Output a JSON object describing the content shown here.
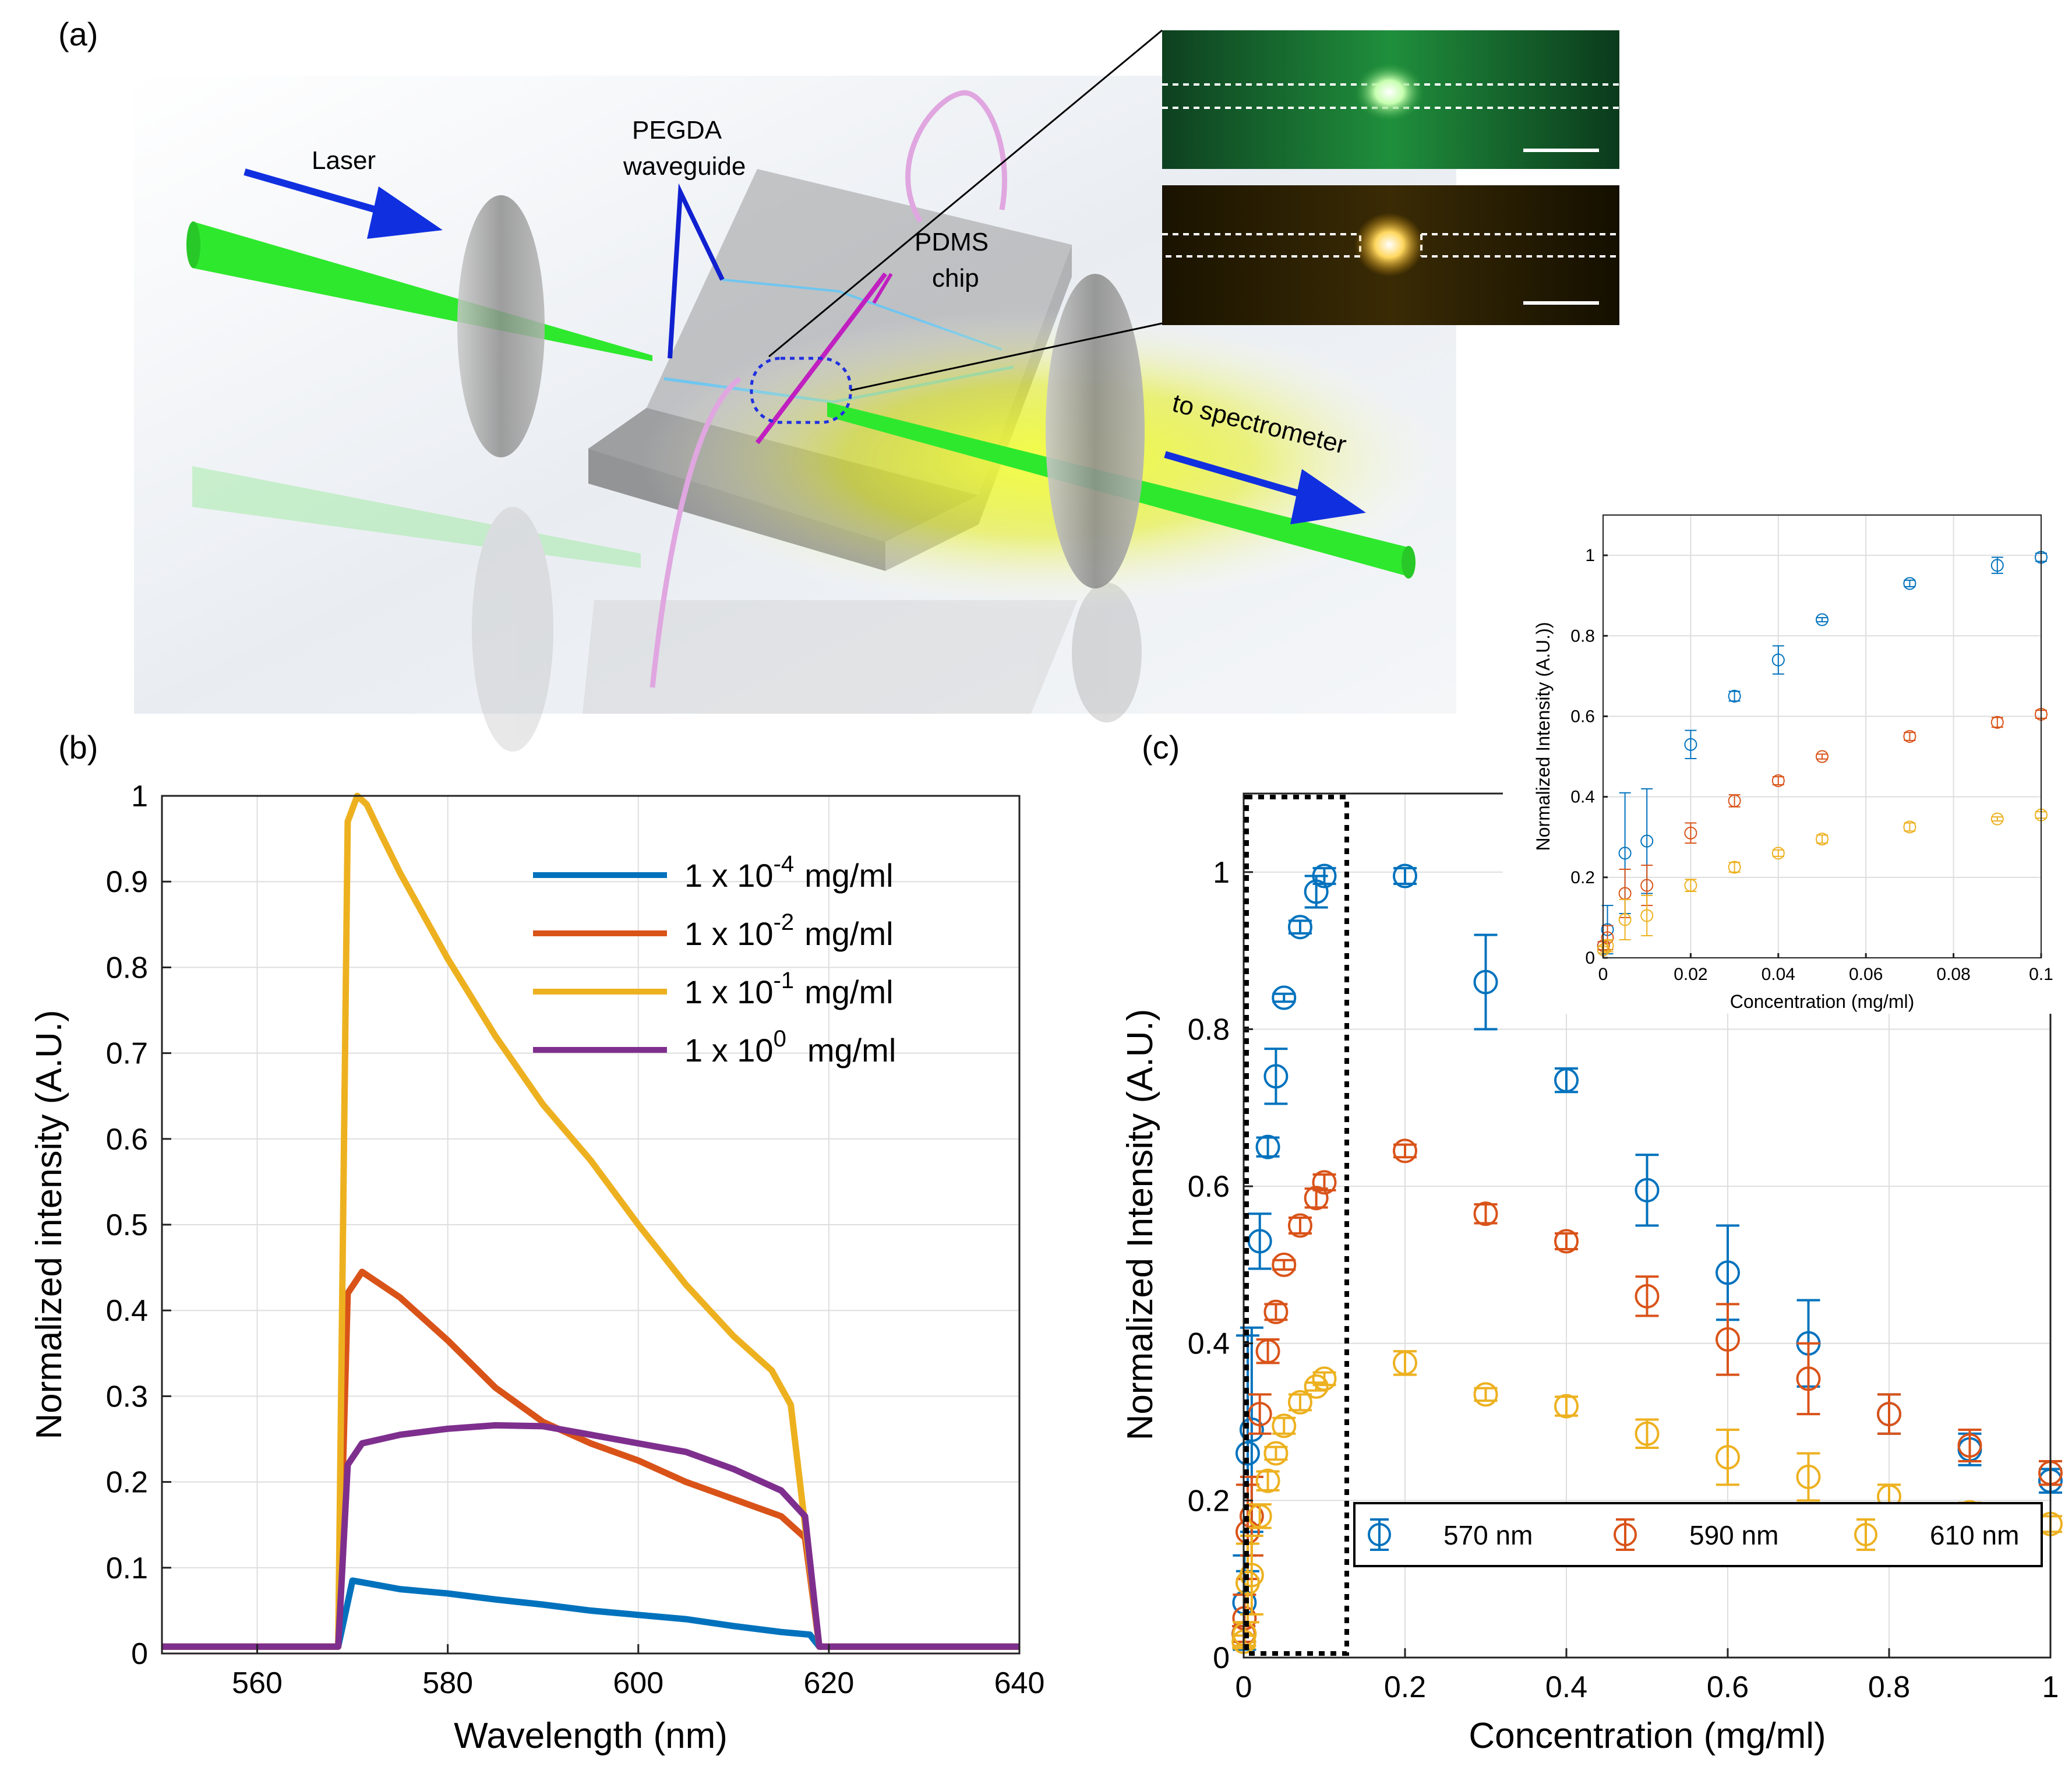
{
  "panel_labels": {
    "a": "(a)",
    "b": "(b)",
    "c": "(c)"
  },
  "diagram": {
    "laser_label": "Laser",
    "waveguide_label_1": "PEGDA",
    "waveguide_label_2": "waveguide",
    "chip_label_1": "PDMS",
    "chip_label_2": "chip",
    "spectrometer_label": "to spectrometer"
  },
  "colors": {
    "blue": "#0072BD",
    "orange": "#D95319",
    "yellow": "#EDB120",
    "purple": "#7E2F8E",
    "laser_green": "#2ee82e",
    "arrow_blue": "#1030e0"
  },
  "chart_data": [
    {
      "id": "b",
      "type": "line",
      "xlabel": "Wavelength (nm)",
      "ylabel": "Normalized intensity (A.U.)",
      "xlim": [
        550,
        640
      ],
      "ylim": [
        0,
        1
      ],
      "xticks": [
        560,
        580,
        600,
        620,
        640
      ],
      "yticks": [
        0,
        0.1,
        0.2,
        0.3,
        0.4,
        0.5,
        0.6,
        0.7,
        0.8,
        0.9,
        1
      ],
      "ytick_labels": [
        "0",
        "0.1",
        "0.2",
        "0.3",
        "0.4",
        "0.5",
        "0.6",
        "0.7",
        "0.8",
        "0.9",
        "1"
      ],
      "grid": true,
      "legend_position": "top-right",
      "series": [
        {
          "name_prefix": "1 x 10",
          "exponent": "-4",
          "unit": "mg/ml",
          "color": "#0072BD",
          "x": [
            550,
            568.5,
            570,
            571,
            575,
            580,
            585,
            590,
            595,
            600,
            605,
            610,
            615,
            618,
            619,
            625,
            630,
            640
          ],
          "y": [
            0.008,
            0.008,
            0.085,
            0.083,
            0.075,
            0.07,
            0.063,
            0.057,
            0.05,
            0.045,
            0.04,
            0.032,
            0.025,
            0.022,
            0.008,
            0.008,
            0.008,
            0.008
          ]
        },
        {
          "name_prefix": "1 x 10",
          "exponent": "-2",
          "unit": "mg/ml",
          "color": "#D95319",
          "x": [
            550,
            568.5,
            569.5,
            571,
            573,
            575,
            580,
            585,
            590,
            595,
            600,
            605,
            610,
            615,
            617.5,
            619,
            625,
            640
          ],
          "y": [
            0.008,
            0.008,
            0.42,
            0.445,
            0.43,
            0.415,
            0.365,
            0.31,
            0.27,
            0.245,
            0.225,
            0.2,
            0.18,
            0.16,
            0.135,
            0.008,
            0.008,
            0.008
          ]
        },
        {
          "name_prefix": "1 x 10",
          "exponent": "-1",
          "unit": "mg/ml",
          "color": "#EDB120",
          "x": [
            550,
            568.5,
            569.5,
            570.5,
            571.5,
            573,
            575,
            580,
            585,
            590,
            595,
            600,
            605,
            610,
            614,
            616,
            619,
            625,
            640
          ],
          "y": [
            0.008,
            0.008,
            0.97,
            1.0,
            0.99,
            0.955,
            0.91,
            0.81,
            0.72,
            0.64,
            0.575,
            0.5,
            0.43,
            0.37,
            0.33,
            0.29,
            0.008,
            0.008,
            0.008
          ]
        },
        {
          "name_prefix": "1 x 10",
          "exponent": "0",
          "unit": "mg/ml",
          "color": "#7E2F8E",
          "x": [
            550,
            568.5,
            569.5,
            571,
            575,
            580,
            585,
            590,
            595,
            600,
            605,
            610,
            615,
            617.5,
            619,
            625,
            640
          ],
          "y": [
            0.008,
            0.008,
            0.22,
            0.245,
            0.255,
            0.262,
            0.266,
            0.265,
            0.255,
            0.245,
            0.235,
            0.215,
            0.19,
            0.16,
            0.008,
            0.008,
            0.008
          ]
        }
      ]
    },
    {
      "id": "c",
      "type": "scatter",
      "xlabel": "Concentration (mg/ml)",
      "ylabel": "Normalized Intensity (A.U.)",
      "xlim": [
        0,
        1
      ],
      "ylim": [
        0,
        1.1
      ],
      "xticks": [
        0,
        0.2,
        0.4,
        0.6,
        0.8,
        1
      ],
      "xtick_labels": [
        "0",
        "0.2",
        "0.4",
        "0.6",
        "0.8",
        "1"
      ],
      "yticks": [
        0,
        0.2,
        0.4,
        0.6,
        0.8,
        1
      ],
      "ytick_labels": [
        "0",
        "0.2",
        "0.4",
        "0.6",
        "0.8",
        "1"
      ],
      "grid": true,
      "legend_position": "bottom",
      "highlight_region_x": [
        0,
        0.13
      ],
      "x": [
        0.0001,
        0.001,
        0.005,
        0.01,
        0.02,
        0.03,
        0.04,
        0.05,
        0.07,
        0.09,
        0.1,
        0.2,
        0.3,
        0.4,
        0.5,
        0.6,
        0.7,
        0.8,
        0.9,
        1.0
      ],
      "series": [
        {
          "name": "570 nm",
          "color": "#0072BD",
          "y": [
            0.03,
            0.07,
            0.26,
            0.29,
            0.53,
            0.65,
            0.74,
            0.84,
            0.93,
            0.975,
            0.995,
            0.995,
            0.86,
            0.735,
            0.595,
            0.49,
            0.4,
            0.31,
            0.265,
            0.225
          ],
          "err": [
            0.01,
            0.06,
            0.15,
            0.13,
            0.035,
            0.012,
            0.035,
            0.005,
            0.008,
            0.02,
            0.01,
            0.01,
            0.06,
            0.015,
            0.045,
            0.06,
            0.055,
            0.025,
            0.02,
            0.015
          ]
        },
        {
          "name": "590 nm",
          "color": "#D95319",
          "y": [
            0.03,
            0.05,
            0.16,
            0.18,
            0.31,
            0.39,
            0.44,
            0.5,
            0.55,
            0.585,
            0.605,
            0.645,
            0.565,
            0.53,
            0.46,
            0.405,
            0.355,
            0.31,
            0.27,
            0.235
          ],
          "err": [
            0.01,
            0.03,
            0.06,
            0.05,
            0.025,
            0.015,
            0.01,
            0.006,
            0.01,
            0.012,
            0.01,
            0.008,
            0.012,
            0.01,
            0.025,
            0.045,
            0.045,
            0.025,
            0.02,
            0.015
          ]
        },
        {
          "name": "610 nm",
          "color": "#EDB120",
          "y": [
            0.02,
            0.03,
            0.095,
            0.105,
            0.18,
            0.225,
            0.26,
            0.295,
            0.325,
            0.345,
            0.355,
            0.375,
            0.335,
            0.32,
            0.285,
            0.255,
            0.23,
            0.205,
            0.185,
            0.17
          ],
          "err": [
            0.008,
            0.015,
            0.05,
            0.05,
            0.015,
            0.012,
            0.008,
            0.01,
            0.01,
            0.005,
            0.008,
            0.015,
            0.008,
            0.012,
            0.018,
            0.035,
            0.03,
            0.015,
            0.012,
            0.01
          ]
        }
      ]
    },
    {
      "id": "c-inset",
      "type": "scatter",
      "xlabel": "Concentration (mg/ml)",
      "ylabel": "Normalized Intensity (A.U.))",
      "xlim": [
        0,
        0.1
      ],
      "ylim": [
        0,
        1.1
      ],
      "xticks": [
        0,
        0.02,
        0.04,
        0.06,
        0.08,
        0.1
      ],
      "xtick_labels": [
        "0",
        "0.02",
        "0.04",
        "0.06",
        "0.08",
        "0.1"
      ],
      "yticks": [
        0,
        0.2,
        0.4,
        0.6,
        0.8,
        1
      ],
      "ytick_labels": [
        "0",
        "0.2",
        "0.4",
        "0.6",
        "0.8",
        "1"
      ],
      "grid": true,
      "note": "zoom of dotted region x in [0, 0.1]; same data as panel c"
    }
  ]
}
